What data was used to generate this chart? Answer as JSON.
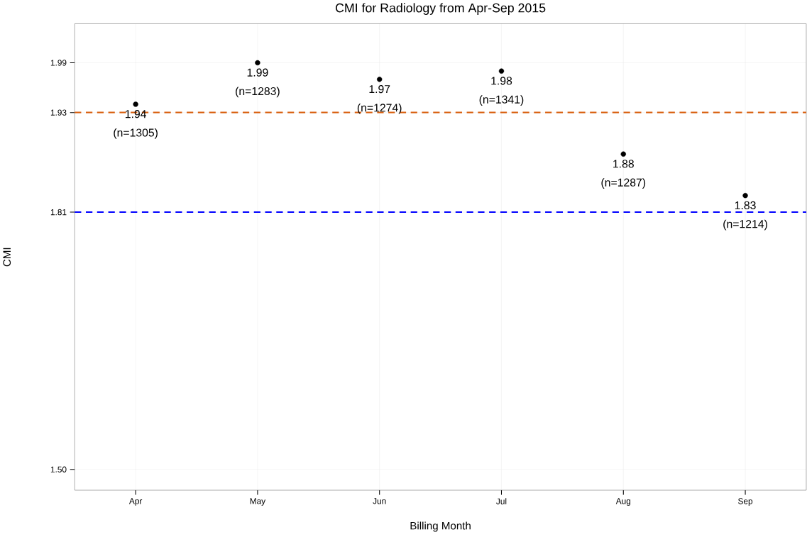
{
  "chart_data": {
    "type": "scatter",
    "title": "CMI for Radiology from Apr-Sep 2015",
    "xlabel": "Billing Month",
    "ylabel": "CMI",
    "categories": [
      "Apr",
      "May",
      "Jun",
      "Jul",
      "Aug",
      "Sep"
    ],
    "series": [
      {
        "color": "#000000",
        "values": [
          1.94,
          1.99,
          1.97,
          1.98,
          1.88,
          1.83
        ]
      }
    ],
    "data_labels": true,
    "value_labels": [
      "1.94 (n=1305)",
      "1.99 (n=1283)",
      "1.97 (n=1274)",
      "1.98 (n=1341)",
      "1.88 (n=1287)",
      "1.83 (n=1214)"
    ],
    "ylim": [
      1.475,
      2.037
    ],
    "yticks": [
      {
        "value": 1.5,
        "label": "1.50"
      },
      1.81,
      1.93,
      1.99
    ],
    "ref_lines": [
      {
        "axis": "y",
        "value": 1.93,
        "color": "#d95f0e",
        "line_style": "dashed"
      },
      {
        "axis": "y",
        "value": 1.81,
        "color": "#0000ff",
        "line_style": "dashed"
      }
    ],
    "grid": true,
    "marker": "circle"
  }
}
